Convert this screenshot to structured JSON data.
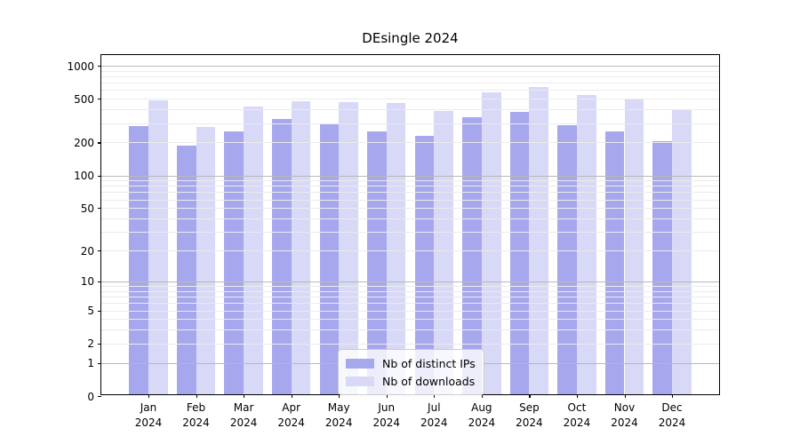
{
  "title": "DEsingle 2024",
  "colors": {
    "distinct_ips": "#a7a7ee",
    "downloads": "#d8d8f7",
    "grid_major": "#b8b8b8",
    "grid_minor": "#ebebeb",
    "axis": "#000000"
  },
  "legend": {
    "items": [
      {
        "label": "Nb of distinct IPs",
        "color": "#a7a7ee"
      },
      {
        "label": "Nb of downloads",
        "color": "#d8d8f7"
      }
    ]
  },
  "chart_data": {
    "type": "bar",
    "title": "DEsingle 2024",
    "categories": [
      "Jan 2024",
      "Feb 2024",
      "Mar 2024",
      "Apr 2024",
      "May 2024",
      "Jun 2024",
      "Jul 2024",
      "Aug 2024",
      "Sep 2024",
      "Oct 2024",
      "Nov 2024",
      "Dec 2024"
    ],
    "series": [
      {
        "name": "Nb of distinct IPs",
        "color": "#a7a7ee",
        "values": [
          273,
          179,
          245,
          313,
          286,
          243,
          222,
          325,
          366,
          277,
          241,
          199
        ]
      },
      {
        "name": "Nb of downloads",
        "color": "#d8d8f7",
        "values": [
          469,
          267,
          410,
          460,
          451,
          440,
          375,
          553,
          619,
          517,
          474,
          387
        ]
      }
    ],
    "xlabel": "",
    "ylabel": "",
    "y_scale": "log10(y+1)",
    "ylim": [
      0,
      1250
    ],
    "y_ticks": [
      0,
      1,
      2,
      5,
      10,
      20,
      50,
      100,
      200,
      500,
      1000
    ],
    "y_major_grid": [
      1,
      10,
      100,
      1000
    ],
    "y_minor_grid": [
      2,
      3,
      4,
      5,
      6,
      7,
      8,
      9,
      20,
      30,
      40,
      50,
      60,
      70,
      80,
      90,
      200,
      300,
      400,
      500,
      600,
      700,
      800,
      900
    ],
    "grid": true,
    "legend_position": "lower center"
  }
}
